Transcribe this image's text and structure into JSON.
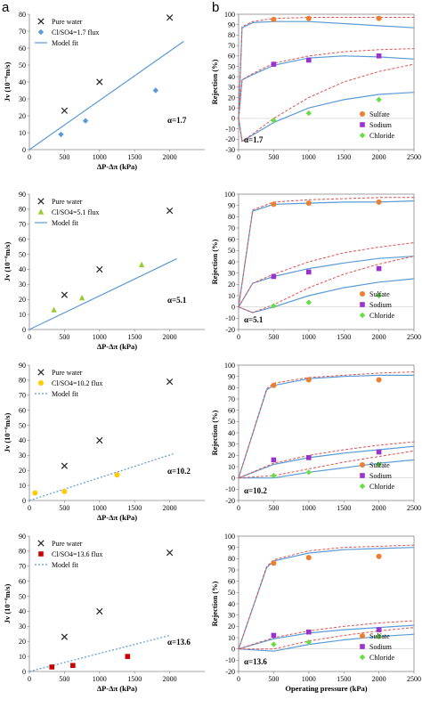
{
  "panel_labels": [
    "a",
    "b"
  ],
  "chart_data": [
    {
      "type": "scatter",
      "panel": "a",
      "alpha_label": "α=1.7",
      "xlabel": "ΔP-Δπ (kPa)",
      "ylabel": "Jv (10⁻⁶m/s)",
      "xlim": [
        0,
        2500
      ],
      "ylim": [
        0,
        80
      ],
      "xticks": [
        0,
        500,
        1000,
        1500,
        2000
      ],
      "yticks": [
        0,
        10,
        20,
        30,
        40,
        50,
        60,
        70,
        80
      ],
      "legend_position": "top-left",
      "series": [
        {
          "name": "Pure water",
          "marker": "x",
          "color": "#222222",
          "x": [
            500,
            1000,
            2000
          ],
          "y": [
            23,
            40,
            78
          ]
        },
        {
          "name": "Cl/SO4=1.7 flux",
          "marker": "diamond",
          "color": "#5b9bd5",
          "x": [
            450,
            800,
            1800
          ],
          "y": [
            9,
            17,
            35
          ]
        },
        {
          "name": "Model fit",
          "marker": "line",
          "color": "#5b9bd5",
          "x": [
            0,
            2200
          ],
          "y": [
            0,
            64
          ]
        }
      ]
    },
    {
      "type": "line",
      "panel": "b",
      "alpha_label": "α=1.7",
      "xlabel": "",
      "ylabel": "Rejection (%)",
      "xlim": [
        0,
        2500
      ],
      "ylim": [
        -30,
        100
      ],
      "xticks": [
        0,
        500,
        1000,
        1500,
        2000,
        2500
      ],
      "yticks": [
        -30,
        -20,
        -10,
        0,
        10,
        20,
        30,
        40,
        50,
        60,
        70,
        80,
        90,
        100
      ],
      "legend_position": "bottom-right",
      "series": [
        {
          "name": "Sulfate",
          "marker": "circle",
          "color": "#ed7d31",
          "x": [
            500,
            1000,
            2000
          ],
          "y": [
            95,
            96,
            96
          ]
        },
        {
          "name": "Sodium",
          "marker": "square",
          "color": "#9933cc",
          "x": [
            500,
            1000,
            2000
          ],
          "y": [
            52,
            56,
            60
          ]
        },
        {
          "name": "Chloride",
          "marker": "diamond",
          "color": "#66dd44",
          "x": [
            500,
            1000,
            2000
          ],
          "y": [
            -2,
            5,
            18
          ]
        },
        {
          "style": "solid",
          "color": "#5b9bd5",
          "x": [
            0,
            50,
            200,
            500,
            1000,
            1500,
            2000,
            2500
          ],
          "y": [
            0,
            87,
            92,
            93,
            93,
            91,
            89,
            87
          ]
        },
        {
          "style": "dashed",
          "color": "#e05050",
          "x": [
            0,
            50,
            200,
            500,
            1000,
            1500,
            2000,
            2500
          ],
          "y": [
            0,
            88,
            93,
            96,
            97,
            97,
            97,
            97
          ]
        },
        {
          "style": "solid",
          "color": "#5b9bd5",
          "x": [
            0,
            50,
            200,
            500,
            1000,
            1500,
            2000,
            2500
          ],
          "y": [
            0,
            37,
            42,
            51,
            58,
            60,
            59,
            57
          ]
        },
        {
          "style": "dashed",
          "color": "#e05050",
          "x": [
            0,
            50,
            200,
            500,
            1000,
            1500,
            2000,
            2500
          ],
          "y": [
            0,
            37,
            43,
            53,
            60,
            64,
            66,
            67
          ]
        },
        {
          "style": "solid",
          "color": "#5b9bd5",
          "x": [
            0,
            50,
            200,
            500,
            1000,
            1500,
            2000,
            2500
          ],
          "y": [
            0,
            -22,
            -16,
            -4,
            10,
            18,
            23,
            25
          ]
        },
        {
          "style": "dashed",
          "color": "#e05050",
          "x": [
            0,
            50,
            200,
            500,
            1000,
            1500,
            2000,
            2500
          ],
          "y": [
            0,
            -22,
            -15,
            0,
            20,
            35,
            45,
            52
          ]
        }
      ]
    },
    {
      "type": "scatter",
      "panel": "a",
      "alpha_label": "α=5.1",
      "xlabel": "ΔP-Δπ (kPa)",
      "ylabel": "Jv (10⁻⁶m/s)",
      "xlim": [
        0,
        2500
      ],
      "ylim": [
        0,
        90
      ],
      "xticks": [
        0,
        500,
        1000,
        1500,
        2000
      ],
      "yticks": [
        0,
        10,
        20,
        30,
        40,
        50,
        60,
        70,
        80,
        90
      ],
      "legend_position": "top-left",
      "series": [
        {
          "name": "Pure water",
          "marker": "x",
          "color": "#222222",
          "x": [
            500,
            1000,
            2000
          ],
          "y": [
            23,
            40,
            79
          ]
        },
        {
          "name": "Cl/SO4=5.1 flux",
          "marker": "triangle",
          "color": "#99cc33",
          "x": [
            350,
            750,
            1600
          ],
          "y": [
            13,
            21,
            43
          ]
        },
        {
          "name": "Model fit",
          "marker": "line",
          "color": "#5b9bd5",
          "x": [
            0,
            2100
          ],
          "y": [
            0,
            47
          ]
        }
      ]
    },
    {
      "type": "line",
      "panel": "b",
      "alpha_label": "α=5.1",
      "xlabel": "",
      "ylabel": "Rejection (%)",
      "xlim": [
        0,
        2500
      ],
      "ylim": [
        -20,
        100
      ],
      "xticks": [
        0,
        500,
        1000,
        1500,
        2000,
        2500
      ],
      "yticks": [
        -20,
        -10,
        0,
        10,
        20,
        30,
        40,
        50,
        60,
        70,
        80,
        90,
        100
      ],
      "legend_position": "bottom-right",
      "series": [
        {
          "name": "Sulfate",
          "marker": "circle",
          "color": "#ed7d31",
          "x": [
            500,
            1000,
            2000
          ],
          "y": [
            91,
            92,
            93
          ]
        },
        {
          "name": "Sodium",
          "marker": "square",
          "color": "#9933cc",
          "x": [
            500,
            1000,
            2000
          ],
          "y": [
            27,
            31,
            34
          ]
        },
        {
          "name": "Chloride",
          "marker": "diamond",
          "color": "#66dd44",
          "x": [
            500,
            1000,
            2000
          ],
          "y": [
            1,
            4,
            10
          ]
        },
        {
          "style": "solid",
          "color": "#5b9bd5",
          "x": [
            0,
            200,
            500,
            1000,
            1500,
            2000,
            2500
          ],
          "y": [
            0,
            85,
            91,
            92,
            93,
            93,
            94
          ]
        },
        {
          "style": "dashed",
          "color": "#e05050",
          "x": [
            0,
            200,
            500,
            1000,
            1500,
            2000,
            2500
          ],
          "y": [
            0,
            86,
            93,
            95,
            96,
            97,
            97
          ]
        },
        {
          "style": "solid",
          "color": "#5b9bd5",
          "x": [
            0,
            200,
            500,
            1000,
            1500,
            2000,
            2500
          ],
          "y": [
            0,
            21,
            27,
            34,
            39,
            43,
            45
          ]
        },
        {
          "style": "dashed",
          "color": "#e05050",
          "x": [
            0,
            200,
            500,
            1000,
            1500,
            2000,
            2500
          ],
          "y": [
            0,
            21,
            29,
            40,
            48,
            53,
            57
          ]
        },
        {
          "style": "solid",
          "color": "#5b9bd5",
          "x": [
            0,
            200,
            500,
            1000,
            1500,
            2000,
            2500
          ],
          "y": [
            0,
            -5,
            0,
            10,
            17,
            22,
            25
          ]
        },
        {
          "style": "dashed",
          "color": "#e05050",
          "x": [
            0,
            200,
            500,
            1000,
            1500,
            2000,
            2500
          ],
          "y": [
            0,
            -5,
            2,
            17,
            29,
            38,
            45
          ]
        }
      ]
    },
    {
      "type": "scatter",
      "panel": "a",
      "alpha_label": "α=10.2",
      "xlabel": "ΔP-Δπ (kPa)",
      "ylabel": "Jv (10⁻⁶m/s)",
      "xlim": [
        0,
        2500
      ],
      "ylim": [
        0,
        90
      ],
      "xticks": [
        0,
        500,
        1000,
        1500,
        2000
      ],
      "yticks": [
        0,
        10,
        20,
        30,
        40,
        50,
        60,
        70,
        80,
        90
      ],
      "legend_position": "top-left",
      "series": [
        {
          "name": "Pure water",
          "marker": "x",
          "color": "#222222",
          "x": [
            500,
            1000,
            2000
          ],
          "y": [
            23,
            40,
            79
          ]
        },
        {
          "name": "Cl/SO4=10.2 flux",
          "marker": "circle",
          "color": "#ffcc00",
          "x": [
            80,
            500,
            1250
          ],
          "y": [
            5,
            6,
            17
          ]
        },
        {
          "name": "Model fit",
          "marker": "dashed",
          "color": "#5b9bd5",
          "x": [
            0,
            2050
          ],
          "y": [
            0,
            31
          ]
        }
      ]
    },
    {
      "type": "line",
      "panel": "b",
      "alpha_label": "α=10.2",
      "xlabel": "",
      "ylabel": "Rejection (%)",
      "xlim": [
        0,
        2500
      ],
      "ylim": [
        -20,
        100
      ],
      "xticks": [
        0,
        500,
        1000,
        1500,
        2000,
        2500
      ],
      "yticks": [
        -20,
        -10,
        0,
        10,
        20,
        30,
        40,
        50,
        60,
        70,
        80,
        90,
        100
      ],
      "legend_position": "bottom-right",
      "series": [
        {
          "name": "Sulfate",
          "marker": "circle",
          "color": "#ed7d31",
          "x": [
            500,
            1000,
            2000
          ],
          "y": [
            82,
            87,
            87
          ]
        },
        {
          "name": "Sodium",
          "marker": "square",
          "color": "#9933cc",
          "x": [
            500,
            1000,
            2000
          ],
          "y": [
            16,
            18,
            23
          ]
        },
        {
          "name": "Chloride",
          "marker": "diamond",
          "color": "#66dd44",
          "x": [
            500,
            1000,
            2000
          ],
          "y": [
            2,
            5,
            12
          ]
        },
        {
          "style": "solid",
          "color": "#5b9bd5",
          "x": [
            0,
            400,
            500,
            1000,
            1500,
            2000,
            2500
          ],
          "y": [
            0,
            78,
            82,
            88,
            90,
            91,
            91
          ]
        },
        {
          "style": "dashed",
          "color": "#e05050",
          "x": [
            0,
            400,
            500,
            1000,
            1500,
            2000,
            2500
          ],
          "y": [
            0,
            79,
            84,
            89,
            91,
            93,
            94
          ]
        },
        {
          "style": "solid",
          "color": "#5b9bd5",
          "x": [
            0,
            500,
            1000,
            1500,
            2000,
            2500
          ],
          "y": [
            0,
            12,
            18,
            22,
            25,
            28
          ]
        },
        {
          "style": "dashed",
          "color": "#e05050",
          "x": [
            0,
            500,
            1000,
            1500,
            2000,
            2500
          ],
          "y": [
            0,
            13,
            20,
            25,
            29,
            32
          ]
        },
        {
          "style": "solid",
          "color": "#5b9bd5",
          "x": [
            0,
            500,
            1000,
            1500,
            2000,
            2500
          ],
          "y": [
            0,
            0,
            5,
            9,
            13,
            16
          ]
        },
        {
          "style": "dashed",
          "color": "#e05050",
          "x": [
            0,
            500,
            1000,
            1500,
            2000,
            2500
          ],
          "y": [
            0,
            2,
            8,
            14,
            19,
            24
          ]
        }
      ]
    },
    {
      "type": "scatter",
      "panel": "a",
      "alpha_label": "α=13.6",
      "xlabel": "ΔP-Δπ (kPa)",
      "ylabel": "Jv (10⁻⁶m/s)",
      "xlim": [
        0,
        2500
      ],
      "ylim": [
        0,
        90
      ],
      "xticks": [
        0,
        500,
        1000,
        1500,
        2000
      ],
      "yticks": [
        0,
        10,
        20,
        30,
        40,
        50,
        60,
        70,
        80,
        90
      ],
      "legend_position": "top-left",
      "series": [
        {
          "name": "Pure water",
          "marker": "x",
          "color": "#222222",
          "x": [
            500,
            1000,
            2000
          ],
          "y": [
            23,
            40,
            79
          ]
        },
        {
          "name": "Cl/SO4=13.6 flux",
          "marker": "square",
          "color": "#cc0000",
          "x": [
            320,
            620,
            1400
          ],
          "y": [
            3,
            4,
            10
          ]
        },
        {
          "name": "Model fit",
          "marker": "dashed",
          "color": "#5b9bd5",
          "x": [
            0,
            2000
          ],
          "y": [
            0,
            24
          ]
        }
      ]
    },
    {
      "type": "line",
      "panel": "b",
      "alpha_label": "α=13.6",
      "xlabel": "Operating pressure (kPa)",
      "ylabel": "Rejection (%)",
      "xlim": [
        0,
        2500
      ],
      "ylim": [
        -20,
        100
      ],
      "xticks": [
        0,
        500,
        1000,
        1500,
        2000,
        2500
      ],
      "yticks": [
        -20,
        -10,
        0,
        10,
        20,
        30,
        40,
        50,
        60,
        70,
        80,
        90,
        100
      ],
      "legend_position": "bottom-right",
      "series": [
        {
          "name": "Sulfate",
          "marker": "circle",
          "color": "#ed7d31",
          "x": [
            500,
            1000,
            2000
          ],
          "y": [
            76,
            81,
            82
          ]
        },
        {
          "name": "Sodium",
          "marker": "square",
          "color": "#9933cc",
          "x": [
            500,
            1000,
            2000
          ],
          "y": [
            12,
            15,
            17
          ]
        },
        {
          "name": "Chloride",
          "marker": "diamond",
          "color": "#66dd44",
          "x": [
            500,
            1000,
            2000
          ],
          "y": [
            4,
            6,
            11
          ]
        },
        {
          "style": "solid",
          "color": "#5b9bd5",
          "x": [
            0,
            400,
            500,
            1000,
            1500,
            2000,
            2500
          ],
          "y": [
            0,
            72,
            78,
            85,
            88,
            89,
            90
          ]
        },
        {
          "style": "dashed",
          "color": "#e05050",
          "x": [
            0,
            400,
            500,
            1000,
            1500,
            2000,
            2500
          ],
          "y": [
            0,
            73,
            79,
            87,
            90,
            91,
            92
          ]
        },
        {
          "style": "solid",
          "color": "#5b9bd5",
          "x": [
            0,
            500,
            1000,
            1500,
            2000,
            2500
          ],
          "y": [
            0,
            9,
            14,
            17,
            19,
            21
          ]
        },
        {
          "style": "dashed",
          "color": "#e05050",
          "x": [
            0,
            500,
            1000,
            1500,
            2000,
            2500
          ],
          "y": [
            0,
            10,
            16,
            20,
            23,
            25
          ]
        },
        {
          "style": "solid",
          "color": "#5b9bd5",
          "x": [
            0,
            500,
            1000,
            1500,
            2000,
            2500
          ],
          "y": [
            0,
            -2,
            4,
            8,
            11,
            13
          ]
        },
        {
          "style": "dashed",
          "color": "#e05050",
          "x": [
            0,
            500,
            1000,
            1500,
            2000,
            2500
          ],
          "y": [
            0,
            0,
            7,
            12,
            16,
            19
          ]
        }
      ]
    }
  ]
}
